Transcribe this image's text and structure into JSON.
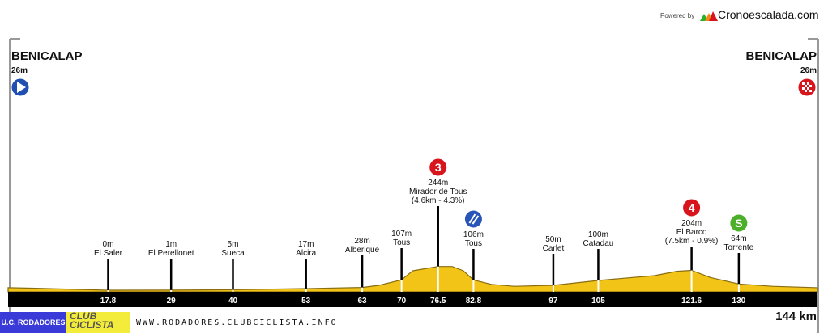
{
  "header": {
    "powered_by": "Powered by",
    "brand": "Cronoescalada.com"
  },
  "start": {
    "name": "BENICALAP",
    "altitude": "26m",
    "icon": "start-play-icon",
    "color": "#1f4fb0"
  },
  "finish": {
    "name": "BENICALAP",
    "altitude": "26m",
    "icon": "finish-checkered-icon",
    "color": "#d8141c"
  },
  "total_distance": "144 km",
  "footer": {
    "club1": "U.C. RODADORES",
    "club2": "CLUB CICLISTA",
    "url": "WWW.RODADORES.CLUBCICLISTA.INFO"
  },
  "chart_data": {
    "type": "area",
    "xlabel": "",
    "ylabel": "",
    "xlim": [
      0,
      144
    ],
    "fill_color": "#f2c418",
    "profile": [
      {
        "km": 0,
        "elev": 26
      },
      {
        "km": 5,
        "elev": 20
      },
      {
        "km": 17.8,
        "elev": 0
      },
      {
        "km": 29,
        "elev": 1
      },
      {
        "km": 40,
        "elev": 5
      },
      {
        "km": 53,
        "elev": 17
      },
      {
        "km": 63,
        "elev": 28
      },
      {
        "km": 66,
        "elev": 50
      },
      {
        "km": 70,
        "elev": 107
      },
      {
        "km": 72,
        "elev": 200
      },
      {
        "km": 76.5,
        "elev": 244
      },
      {
        "km": 79,
        "elev": 244
      },
      {
        "km": 81,
        "elev": 200
      },
      {
        "km": 82.8,
        "elev": 106
      },
      {
        "km": 86,
        "elev": 60
      },
      {
        "km": 90,
        "elev": 40
      },
      {
        "km": 97,
        "elev": 50
      },
      {
        "km": 105,
        "elev": 100
      },
      {
        "km": 115,
        "elev": 150
      },
      {
        "km": 119,
        "elev": 195
      },
      {
        "km": 121.6,
        "elev": 204
      },
      {
        "km": 125,
        "elev": 130
      },
      {
        "km": 130,
        "elev": 64
      },
      {
        "km": 136,
        "elev": 40
      },
      {
        "km": 144,
        "elev": 26
      }
    ],
    "waypoints": [
      {
        "km": "17.8",
        "altitude": "0m",
        "name": "El Saler",
        "detail": "",
        "icon": ""
      },
      {
        "km": "29",
        "altitude": "1m",
        "name": "El Perellonet",
        "detail": "",
        "icon": ""
      },
      {
        "km": "40",
        "altitude": "5m",
        "name": "Sueca",
        "detail": "",
        "icon": ""
      },
      {
        "km": "53",
        "altitude": "17m",
        "name": "Alcira",
        "detail": "",
        "icon": ""
      },
      {
        "km": "63",
        "altitude": "28m",
        "name": "Alberique",
        "detail": "",
        "icon": ""
      },
      {
        "km": "70",
        "altitude": "107m",
        "name": "Tous",
        "detail": "",
        "icon": ""
      },
      {
        "km": "76.5",
        "altitude": "244m",
        "name": "Mirador de Tous",
        "detail": "(4.6km - 4.3%)",
        "icon": "3"
      },
      {
        "km": "82.8",
        "altitude": "106m",
        "name": "Tous",
        "detail": "",
        "icon": "descent"
      },
      {
        "km": "97",
        "altitude": "50m",
        "name": "Carlet",
        "detail": "",
        "icon": ""
      },
      {
        "km": "105",
        "altitude": "100m",
        "name": "Catadau",
        "detail": "",
        "icon": ""
      },
      {
        "km": "121.6",
        "altitude": "204m",
        "name": "El Barco",
        "detail": "(7.5km - 0.9%)",
        "icon": "4"
      },
      {
        "km": "130",
        "altitude": "64m",
        "name": "Torrente",
        "detail": "",
        "icon": "S"
      }
    ],
    "icon_colors": {
      "3": "#d8141c",
      "4": "#d8141c",
      "descent": "#2a55b8",
      "S": "#4caf2a"
    }
  }
}
